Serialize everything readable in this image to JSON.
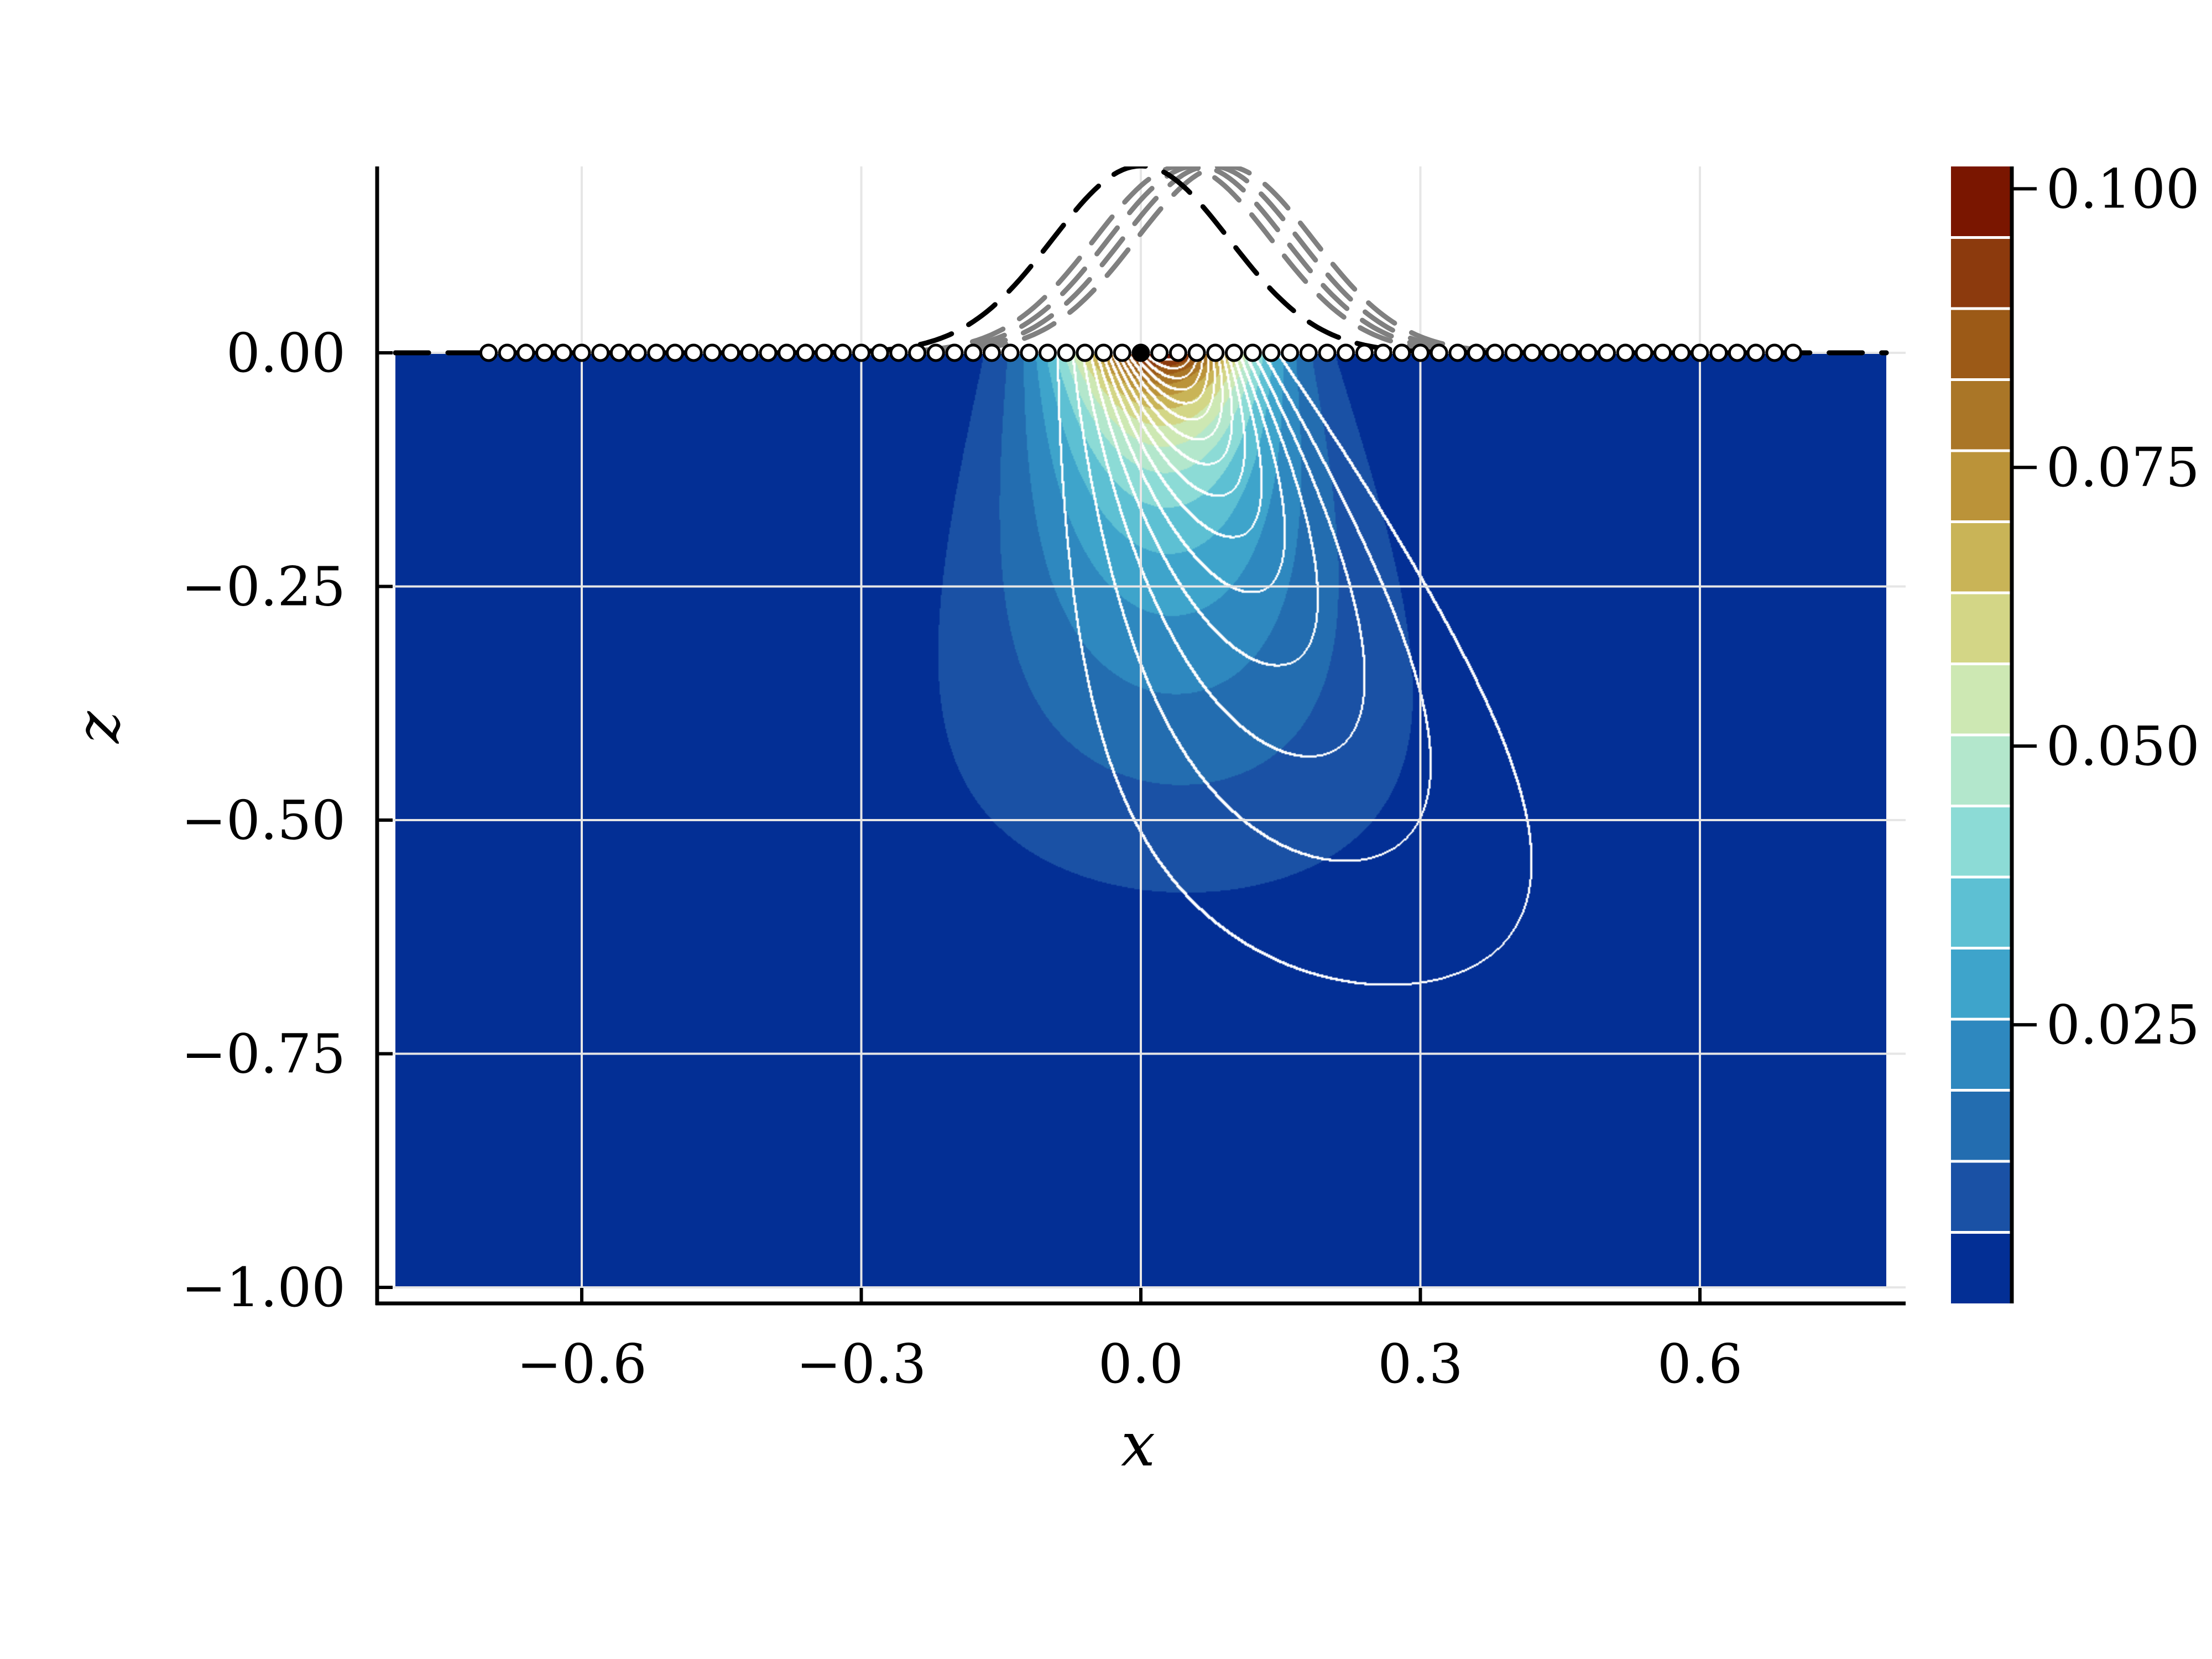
{
  "chart_data": {
    "type": "heatmap",
    "subtype": "filled contour with contour lines",
    "xlabel": "x",
    "ylabel": "z",
    "xlim": [
      -0.82,
      0.82
    ],
    "ylim": [
      -1.017,
      0.2
    ],
    "field_extent": {
      "x": [
        -0.8,
        0.8
      ],
      "z": [
        -1.0,
        0.0
      ]
    },
    "xticks": [
      "−0.6",
      "−0.3",
      "0.0",
      "0.3",
      "0.6"
    ],
    "xtick_values": [
      -0.6,
      -0.3,
      0.0,
      0.3,
      0.6
    ],
    "yticks": [
      "0.00",
      "−0.25",
      "−0.50",
      "−0.75",
      "−1.00"
    ],
    "ytick_values": [
      0.0,
      -0.25,
      -0.5,
      -0.75,
      -1.0
    ],
    "grid": true,
    "colorbar": {
      "range": [
        0.0,
        0.102
      ],
      "ticks": [
        "0.100",
        "0.075",
        "0.050",
        "0.025"
      ],
      "tick_values": [
        0.1,
        0.075,
        0.05,
        0.025
      ],
      "n_levels": 16,
      "colors": [
        "#032f95",
        "#1a51a5",
        "#236db0",
        "#2e88bf",
        "#3ea4cb",
        "#5dc0d3",
        "#8cdbd6",
        "#b3e7cc",
        "#cde8b3",
        "#d3d686",
        "#c9b457",
        "#bb9339",
        "#aa7627",
        "#9c5a17",
        "#8c3a0d",
        "#7a1600"
      ]
    },
    "peak": {
      "x": 0.03,
      "z": 0.0,
      "value": 0.1
    },
    "surface_markers": {
      "x_start": -0.7,
      "x_end": 0.7,
      "step": 0.02,
      "z": 0.0,
      "highlighted_x": 0.0
    },
    "dashed_curves": [
      {
        "color": "#000000",
        "amplitude": 0.2,
        "center": 0.0,
        "sigma": 0.095
      },
      {
        "color": "#808080",
        "amplitude": 0.2,
        "center": 0.045,
        "sigma": 0.095
      },
      {
        "color": "#808080",
        "amplitude": 0.2,
        "center": 0.06,
        "sigma": 0.095
      },
      {
        "color": "#808080",
        "amplitude": 0.2,
        "center": 0.075,
        "sigma": 0.095
      },
      {
        "color": "#808080",
        "amplitude": 0.2,
        "center": 0.09,
        "sigma": 0.095
      }
    ],
    "contour_line_color": "#ffffff"
  }
}
